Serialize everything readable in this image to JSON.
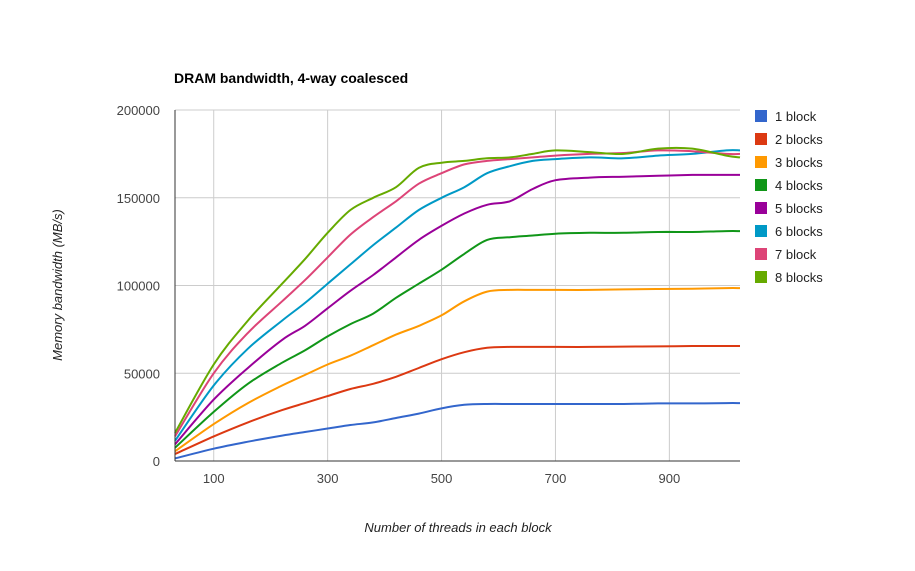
{
  "chart_data": {
    "type": "line",
    "title": "DRAM bandwidth, 4-way coalesced",
    "xlabel": "Number of threads in each block",
    "ylabel": "Memory bandwidth (MB/s)",
    "xlim": [
      32,
      1024
    ],
    "ylim": [
      0,
      200000
    ],
    "x_ticks": [
      100,
      300,
      500,
      700,
      900
    ],
    "y_ticks": [
      0,
      50000,
      100000,
      150000,
      200000
    ],
    "x_tick_labels": [
      "100",
      "300",
      "500",
      "700",
      "900"
    ],
    "y_tick_labels": [
      "0",
      "50000",
      "100000",
      "150000",
      "200000"
    ],
    "grid": true,
    "legend_position": "right",
    "x": [
      32,
      100,
      160,
      220,
      260,
      300,
      340,
      380,
      420,
      460,
      500,
      540,
      580,
      620,
      660,
      700,
      760,
      820,
      880,
      940,
      1000,
      1024
    ],
    "series": [
      {
        "name": "1 block",
        "color": "#3366cc",
        "values": [
          1500,
          7000,
          11000,
          14500,
          16500,
          18500,
          20500,
          22000,
          24500,
          27000,
          30000,
          32000,
          32500,
          32500,
          32500,
          32500,
          32500,
          32500,
          32800,
          32800,
          33000,
          33000
        ]
      },
      {
        "name": "2 blocks",
        "color": "#dc3912",
        "values": [
          4000,
          14000,
          22000,
          29000,
          33000,
          37000,
          41000,
          44000,
          48000,
          53000,
          58000,
          62000,
          64500,
          65000,
          65000,
          65000,
          65000,
          65200,
          65300,
          65500,
          65500,
          65500
        ]
      },
      {
        "name": "3 blocks",
        "color": "#ff9900",
        "values": [
          5500,
          21000,
          33000,
          43000,
          49000,
          55000,
          60000,
          66000,
          72000,
          77000,
          83000,
          91000,
          96500,
          97500,
          97500,
          97500,
          97500,
          97800,
          98000,
          98200,
          98500,
          98500
        ]
      },
      {
        "name": "4 blocks",
        "color": "#109618",
        "values": [
          7500,
          28000,
          44000,
          56000,
          63000,
          71000,
          78000,
          84000,
          93000,
          101000,
          109000,
          118000,
          126000,
          127500,
          128500,
          129500,
          130000,
          130000,
          130500,
          130500,
          131000,
          131000
        ]
      },
      {
        "name": "5 blocks",
        "color": "#990099",
        "values": [
          9500,
          35000,
          53000,
          69000,
          77000,
          87000,
          97000,
          106000,
          116000,
          126000,
          134000,
          141000,
          146000,
          148000,
          155000,
          160000,
          161500,
          162000,
          162500,
          163000,
          163000,
          163000
        ]
      },
      {
        "name": "6 blocks",
        "color": "#0099c6",
        "values": [
          11500,
          43000,
          64000,
          80000,
          90000,
          101000,
          112000,
          123000,
          133000,
          143000,
          150000,
          156000,
          164000,
          168000,
          171000,
          172000,
          173000,
          172500,
          174000,
          175000,
          177000,
          177000
        ]
      },
      {
        "name": "7 block",
        "color": "#dd4477",
        "values": [
          14000,
          50000,
          73000,
          91000,
          103000,
          116000,
          129000,
          139000,
          148000,
          158000,
          164000,
          169000,
          171000,
          172000,
          173000,
          174000,
          175000,
          175500,
          177000,
          176500,
          175000,
          175000
        ]
      },
      {
        "name": "8 blocks",
        "color": "#66aa00",
        "values": [
          16000,
          55000,
          80000,
          101000,
          115000,
          130000,
          143000,
          150000,
          156000,
          167000,
          170000,
          171000,
          172500,
          173000,
          175000,
          177000,
          176000,
          175000,
          178000,
          178000,
          174000,
          173000
        ]
      }
    ]
  }
}
